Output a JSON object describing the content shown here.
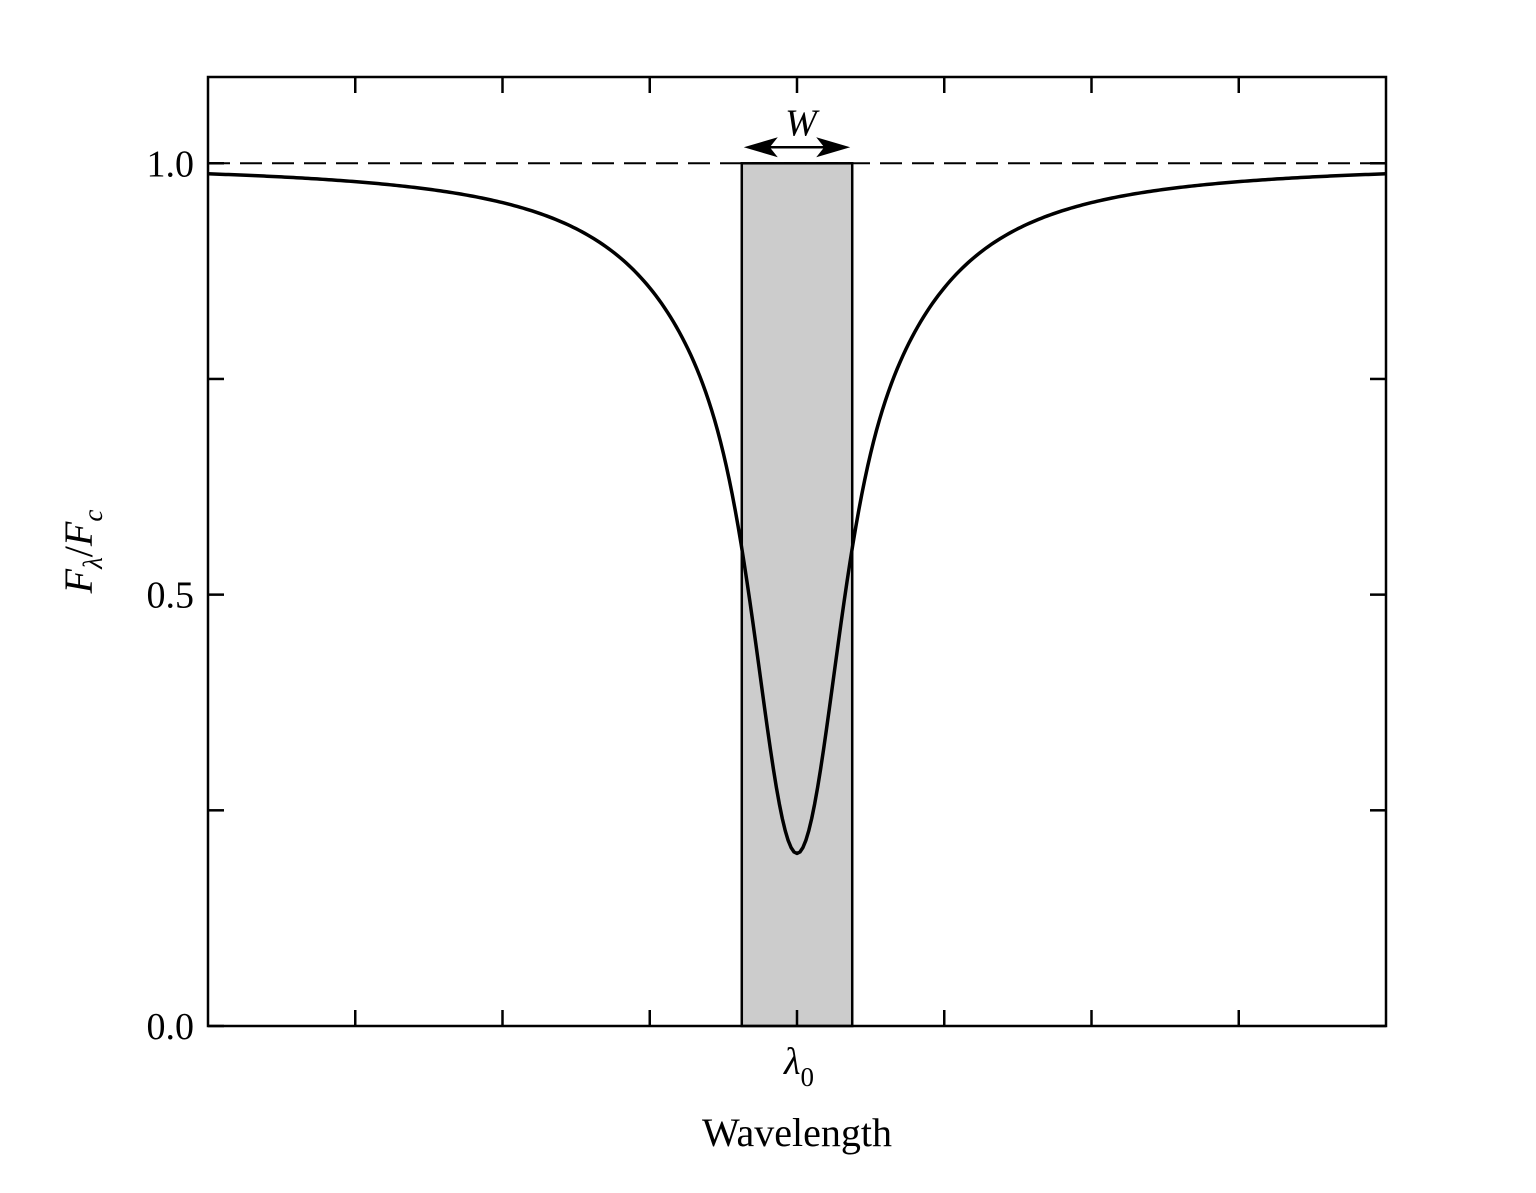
{
  "chart_data": {
    "type": "line",
    "title": "",
    "xlabel": "Wavelength",
    "ylabel": {
      "numerator": "F",
      "numerator_sub": "λ",
      "separator": "/",
      "denominator": "F",
      "denominator_sub": "c"
    },
    "xlim": [
      -4,
      4
    ],
    "ylim": [
      0,
      1.1
    ],
    "y_ticks": [
      {
        "value": 0.0,
        "label": "0.0"
      },
      {
        "value": 0.25,
        "label": ""
      },
      {
        "value": 0.5,
        "label": "0.5"
      },
      {
        "value": 0.75,
        "label": ""
      },
      {
        "value": 1.0,
        "label": "1.0"
      }
    ],
    "x_ticks": [
      -3,
      -2,
      -1,
      0,
      1,
      2,
      3
    ],
    "x_center_label": {
      "symbol": "λ",
      "sub": "0"
    },
    "grid": false,
    "legend": "none",
    "continuum_level": 1.0,
    "line_profile": {
      "x": [
        -4.0,
        -3.5,
        -3.0,
        -2.5,
        -2.0,
        -1.75,
        -1.5,
        -1.25,
        -1.0,
        -0.9,
        -0.8,
        -0.7,
        -0.6,
        -0.5,
        -0.4,
        -0.3,
        -0.2,
        -0.1,
        -0.05,
        0.0,
        0.05,
        0.1,
        0.2,
        0.3,
        0.4,
        0.5,
        0.6,
        0.7,
        0.8,
        0.9,
        1.0,
        1.25,
        1.5,
        1.75,
        2.0,
        2.5,
        3.0,
        3.5,
        4.0
      ],
      "y": [
        1.0,
        0.999,
        0.996,
        0.99,
        0.978,
        0.967,
        0.948,
        0.914,
        0.853,
        0.82,
        0.78,
        0.73,
        0.65,
        0.58,
        0.5,
        0.42,
        0.33,
        0.24,
        0.215,
        0.2,
        0.215,
        0.24,
        0.33,
        0.42,
        0.5,
        0.58,
        0.65,
        0.73,
        0.78,
        0.82,
        0.853,
        0.914,
        0.948,
        0.967,
        0.978,
        0.99,
        0.996,
        0.999,
        1.0
      ]
    },
    "equivalent_width_box": {
      "x_start": -0.375,
      "x_end": 0.375,
      "y_start": 0.0,
      "y_end": 1.0,
      "fill": "#cccccc",
      "label": "W"
    },
    "colors": {
      "line": "#000000",
      "box_fill": "#cccccc",
      "frame": "#000000"
    }
  }
}
